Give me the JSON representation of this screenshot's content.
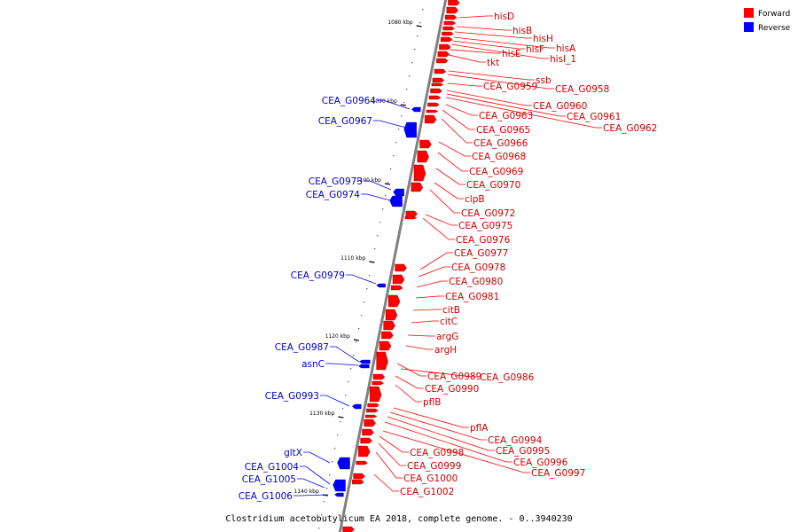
{
  "colors": {
    "forward": "#ff0000",
    "reverse": "#0000ff",
    "axis": "#808080"
  },
  "legend": {
    "forward": "Forward",
    "reverse": "Reverse"
  },
  "caption": "Clostridium acetobutylicum EA 2018, complete genome. - 0..3940230",
  "ticks": [
    "1080 kbp",
    "1090 kbp",
    "1100 kbp",
    "1110 kbp",
    "1120 kbp",
    "1130 kbp",
    "1140 kbp"
  ],
  "forward_genes": [
    "hisD",
    "hisB",
    "hisH",
    "hisA",
    "hisF",
    "hisI_1",
    "hisE",
    "tkt",
    "ssb",
    "CEA_G0958",
    "CEA_G0959",
    "CEA_G0960",
    "CEA_G0961",
    "CEA_G0962",
    "CEA_G0963",
    "CEA_G0965",
    "CEA_G0966",
    "CEA_G0968",
    "CEA_G0969",
    "CEA_G0970",
    "clpB",
    "CEA_G0972",
    "CEA_G0975",
    "CEA_G0976",
    "CEA_G0977",
    "CEA_G0978",
    "CEA_G0980",
    "CEA_G0981",
    "citB",
    "citC",
    "argG",
    "argH",
    "CEA_G0989",
    "CEA_G0986",
    "CEA_G0990",
    "pflB",
    "pflA",
    "CEA_G0994",
    "CEA_G0995",
    "CEA_G0996",
    "CEA_G0997",
    "CEA_G0998",
    "CEA_G0999",
    "CEA_G1000",
    "CEA_G1002"
  ],
  "reverse_genes": [
    "CEA_G0964",
    "CEA_G0967",
    "CEA_G0973",
    "CEA_G0974",
    "CEA_G0979",
    "CEA_G0987",
    "asnC",
    "CEA_G0993",
    "gltX",
    "CEA_G1004",
    "CEA_G1005",
    "CEA_G1006"
  ]
}
